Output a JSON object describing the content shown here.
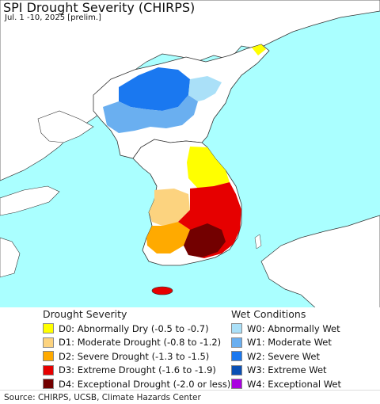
{
  "header": {
    "title": "SPI Drought Severity (CHIRPS)",
    "subtitle": "Jul. 1 -10, 2025 [prelim.]"
  },
  "legend": {
    "drought": {
      "title": "Drought Severity",
      "items": [
        {
          "label": "D0: Abnormally Dry (-0.5 to -0.7)",
          "color": "#ffff00"
        },
        {
          "label": "D1: Moderate Drought (-0.8 to -1.2)",
          "color": "#fcd37f"
        },
        {
          "label": "D2: Severe Drought (-1.3 to -1.5)",
          "color": "#ffaa00"
        },
        {
          "label": "D3: Extreme Drought (-1.6 to -1.9)",
          "color": "#e60000"
        },
        {
          "label": "D4: Exceptional Drought (-2.0 or less)",
          "color": "#730000"
        }
      ]
    },
    "wet": {
      "title": "Wet Conditions",
      "items": [
        {
          "label": "W0: Abnormally Wet",
          "color": "#aae0f8"
        },
        {
          "label": "W1: Moderate Wet",
          "color": "#6aaff0"
        },
        {
          "label": "W2: Severe Wet",
          "color": "#1a78f0"
        },
        {
          "label": "W3: Extreme Wet",
          "color": "#0a50b4"
        },
        {
          "label": "W4: Exceptional Wet",
          "color": "#aa00e0"
        }
      ]
    }
  },
  "footer": {
    "source": "Source: CHIRPS, UCSB, Climate Hazards Center"
  },
  "map": {
    "ocean_color": "#aaffff",
    "land_color": "#ffffff",
    "border_color": "#333333"
  }
}
